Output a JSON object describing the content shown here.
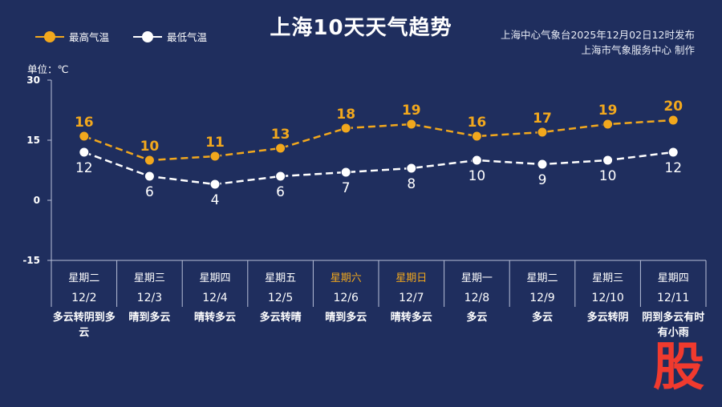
{
  "title": "上海10天天气趋势",
  "publisher": {
    "line1": "上海中心气象台2025年12月02日12时发布",
    "line2": "上海市气象服务中心  制作"
  },
  "unit_label": "单位：℃",
  "watermark": "股",
  "colors": {
    "background": "#1f2e5e",
    "high": "#f2a81d",
    "low": "#ffffff",
    "weekend": "#f2a81d",
    "grid": "#b8c0d8",
    "stamp": "#f03a2e"
  },
  "chart_data": {
    "type": "line",
    "ylim": [
      -15,
      30
    ],
    "yticks": [
      30,
      15,
      0,
      -15
    ],
    "legend_position": "top-left",
    "grid": false,
    "series": [
      {
        "name": "最高气温",
        "color": "#f2a81d",
        "values": [
          16,
          10,
          11,
          13,
          18,
          19,
          16,
          17,
          19,
          20
        ]
      },
      {
        "name": "最低气温",
        "color": "#ffffff",
        "values": [
          12,
          6,
          4,
          6,
          7,
          8,
          10,
          9,
          10,
          12
        ]
      }
    ],
    "days": [
      {
        "weekday": "星期二",
        "date": "12/2",
        "weather": "多云转阴到多云",
        "weekend": false
      },
      {
        "weekday": "星期三",
        "date": "12/3",
        "weather": "晴到多云",
        "weekend": false
      },
      {
        "weekday": "星期四",
        "date": "12/4",
        "weather": "晴转多云",
        "weekend": false
      },
      {
        "weekday": "星期五",
        "date": "12/5",
        "weather": "多云转晴",
        "weekend": false
      },
      {
        "weekday": "星期六",
        "date": "12/6",
        "weather": "晴到多云",
        "weekend": true
      },
      {
        "weekday": "星期日",
        "date": "12/7",
        "weather": "晴转多云",
        "weekend": true
      },
      {
        "weekday": "星期一",
        "date": "12/8",
        "weather": "多云",
        "weekend": false
      },
      {
        "weekday": "星期二",
        "date": "12/9",
        "weather": "多云",
        "weekend": false
      },
      {
        "weekday": "星期三",
        "date": "12/10",
        "weather": "多云转阴",
        "weekend": false
      },
      {
        "weekday": "星期四",
        "date": "12/11",
        "weather": "阴到多云有时有小雨",
        "weekend": false
      }
    ]
  }
}
